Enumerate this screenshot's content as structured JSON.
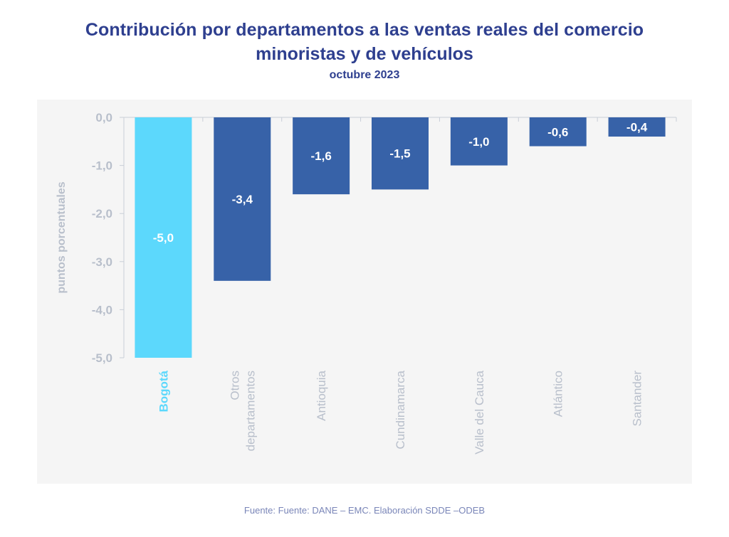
{
  "header": {
    "title_line1": "Contribución por departamentos a las ventas reales del comercio",
    "title_line2": "minoristas y de vehículos",
    "subtitle": "octubre 2023"
  },
  "footer": {
    "source": "Fuente: Fuente: DANE – EMC. Elaboración SDDE –ODEB"
  },
  "colors": {
    "highlight": "#5cd8fc",
    "bar": "#3762a8",
    "axis_text": "#b8bfcb",
    "title": "#2e3f8f",
    "bar_label": "#ffffff"
  },
  "chart_data": {
    "type": "bar",
    "title": "Contribución por departamentos a las ventas reales del comercio minoristas y de vehículos",
    "subtitle": "octubre 2023",
    "xlabel": "",
    "ylabel": "puntos porcentuales",
    "categories": [
      [
        "Bogotá"
      ],
      [
        "Otros",
        "departamentos"
      ],
      [
        "Antioquia"
      ],
      [
        "Cundinamarca"
      ],
      [
        "Valle del Cauca"
      ],
      [
        "Atlántico"
      ],
      [
        "Santander"
      ]
    ],
    "values": [
      -5.0,
      -3.4,
      -1.6,
      -1.5,
      -1.0,
      -0.6,
      -0.4
    ],
    "data_labels": [
      "-5,0",
      "-3,4",
      "-1,6",
      "-1,5",
      "-1,0",
      "-0,6",
      "-0,4"
    ],
    "highlight_index": 0,
    "ylim": [
      -5.0,
      0.0
    ],
    "yticks": [
      0,
      -1,
      -2,
      -3,
      -4,
      -5
    ],
    "ytick_labels": [
      "0,0",
      "-1,0",
      "-2,0",
      "-3,0",
      "-4,0",
      "-5,0"
    ],
    "grid": false,
    "legend": "none",
    "source": "Fuente: Fuente: DANE – EMC. Elaboración SDDE –ODEB"
  }
}
